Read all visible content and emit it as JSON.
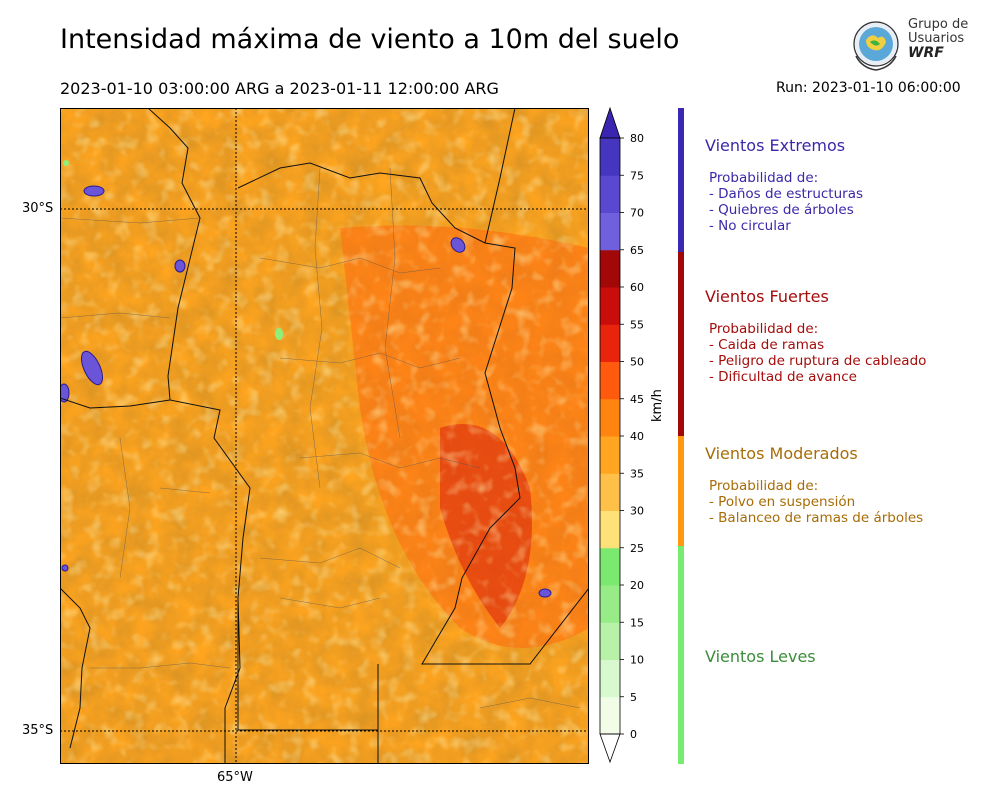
{
  "title": "Intensidad máxima de viento a 10m del suelo",
  "period": "2023-01-10 03:00:00 ARG  a  2023-01-11 12:00:00 ARG",
  "run": "Run: 2023-01-10 06:00:00",
  "logo": {
    "line1": "Grupo de",
    "line2": "Usuarios",
    "line3": "WRF"
  },
  "map": {
    "lat_labels": [
      "30°S",
      "35°S"
    ],
    "lon_labels": [
      "65°W"
    ],
    "high_wind_spots": 12
  },
  "colorbar": {
    "unit": "km/h",
    "ticks": [
      "0",
      "5",
      "10",
      "15",
      "20",
      "25",
      "30",
      "35",
      "40",
      "45",
      "50",
      "55",
      "60",
      "65",
      "70",
      "75",
      "80"
    ],
    "colors": [
      "#f2fde8",
      "#d8f8cf",
      "#b8f2a8",
      "#98ec88",
      "#7be870",
      "#ffe17a",
      "#ffc04a",
      "#ffa51f",
      "#ff8510",
      "#ff5a0e",
      "#e8240c",
      "#c80d0a",
      "#a20808",
      "#7060dd",
      "#5a48d0",
      "#4535bf",
      "#3a25b0"
    ]
  },
  "categories": [
    {
      "name": "Vientos Extremos",
      "color": "#3a28a8",
      "intro": "Probabilidad de:",
      "items": [
        "- Daños de estructuras",
        "- Quiebres de árboles",
        "- No circular"
      ]
    },
    {
      "name": "Vientos Fuertes",
      "color": "#a50c0c",
      "intro": "Probabilidad de:",
      "items": [
        "- Caida de ramas",
        "- Peligro de ruptura de cableado",
        "- Dificultad de avance"
      ]
    },
    {
      "name": "Vientos Moderados",
      "color": "#a86c06",
      "intro": "Probabilidad de:",
      "items": [
        "- Polvo en suspensión",
        "- Balanceo de ramas de árboles"
      ]
    },
    {
      "name": "Vientos Leves",
      "color": "#3a8c3a",
      "intro": "",
      "items": []
    }
  ],
  "strip_colors": [
    "#3a28b0",
    "#a00808",
    "#ff9a10",
    "#78ec70"
  ]
}
